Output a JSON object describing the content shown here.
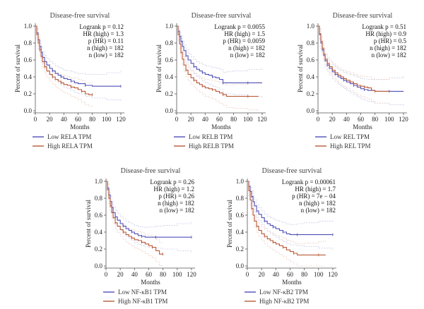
{
  "figure": {
    "background": "#ffffff",
    "colors": {
      "low": "#5050b8",
      "high": "#b85a38",
      "low_ci": "#b8b8e0",
      "high_ci": "#e6c0b0",
      "axis": "#555555"
    }
  },
  "chart_data": [
    {
      "type": "line",
      "title": "Disease-free survival",
      "xlabel": "Months",
      "ylabel": "Percent of survival",
      "xlim": [
        0,
        125
      ],
      "ylim": [
        0,
        1.0
      ],
      "xticks": [
        "0",
        "20",
        "40",
        "60",
        "80",
        "100",
        "120"
      ],
      "yticks": [
        "0.0",
        "0.2",
        "0.4",
        "0.6",
        "0.8",
        "1.0"
      ],
      "stats": [
        "Logrank p = 0.12",
        "HR (high) = 1.3",
        "p (HR) = 0.11",
        "n (high) = 182",
        "n (low) = 182"
      ],
      "legend": [
        "Low RELA TPM",
        "High RELA TPM"
      ],
      "series": [
        {
          "name": "Low RELA TPM",
          "x": [
            0,
            2,
            4,
            6,
            8,
            10,
            13,
            16,
            20,
            24,
            28,
            32,
            36,
            40,
            45,
            50,
            55,
            60,
            70,
            80,
            100,
            120
          ],
          "y": [
            1.0,
            0.92,
            0.84,
            0.76,
            0.69,
            0.63,
            0.58,
            0.54,
            0.5,
            0.47,
            0.44,
            0.42,
            0.4,
            0.38,
            0.37,
            0.35,
            0.33,
            0.32,
            0.3,
            0.29,
            0.29,
            0.29
          ]
        },
        {
          "name": "High RELA TPM",
          "x": [
            0,
            2,
            4,
            6,
            8,
            10,
            13,
            16,
            20,
            24,
            28,
            32,
            36,
            40,
            45,
            50,
            55,
            60,
            65,
            70,
            75,
            80
          ],
          "y": [
            1.0,
            0.9,
            0.8,
            0.72,
            0.64,
            0.58,
            0.52,
            0.47,
            0.43,
            0.4,
            0.37,
            0.35,
            0.33,
            0.31,
            0.3,
            0.28,
            0.27,
            0.25,
            0.23,
            0.2,
            0.19,
            0.19
          ]
        }
      ]
    },
    {
      "type": "line",
      "title": "Disease-free survival",
      "xlabel": "Months",
      "ylabel": "Percent of survival",
      "xlim": [
        0,
        125
      ],
      "ylim": [
        0,
        1.0
      ],
      "xticks": [
        "0",
        "20",
        "40",
        "60",
        "80",
        "100",
        "120"
      ],
      "yticks": [
        "0.0",
        "0.2",
        "0.4",
        "0.6",
        "0.8",
        "1.0"
      ],
      "stats": [
        "Logrank p = 0.0055",
        "HR (high) = 1.5",
        "p (HR) = 0.0059",
        "n (high) = 182",
        "n (low) = 182"
      ],
      "legend": [
        "Low RELB TPM",
        "High RELB TPM"
      ],
      "series": [
        {
          "name": "Low RELB TPM",
          "x": [
            0,
            2,
            4,
            6,
            8,
            10,
            13,
            16,
            20,
            24,
            28,
            32,
            36,
            40,
            45,
            50,
            55,
            60,
            65,
            70,
            80,
            100,
            120
          ],
          "y": [
            1.0,
            0.94,
            0.88,
            0.82,
            0.76,
            0.71,
            0.65,
            0.6,
            0.56,
            0.52,
            0.49,
            0.47,
            0.45,
            0.43,
            0.42,
            0.4,
            0.39,
            0.37,
            0.33,
            0.33,
            0.33,
            0.33,
            0.33
          ]
        },
        {
          "name": "High RELB TPM",
          "x": [
            0,
            2,
            4,
            6,
            8,
            10,
            13,
            16,
            20,
            24,
            28,
            32,
            36,
            40,
            45,
            50,
            55,
            60,
            65,
            70,
            80,
            100,
            115
          ],
          "y": [
            1.0,
            0.9,
            0.79,
            0.69,
            0.61,
            0.54,
            0.48,
            0.43,
            0.39,
            0.36,
            0.33,
            0.31,
            0.29,
            0.27,
            0.26,
            0.25,
            0.23,
            0.21,
            0.19,
            0.17,
            0.17,
            0.17,
            0.17
          ]
        }
      ]
    },
    {
      "type": "line",
      "title": "Disease-free survival",
      "xlabel": "Months",
      "ylabel": "Percent of survival",
      "xlim": [
        0,
        125
      ],
      "ylim": [
        0,
        1.0
      ],
      "xticks": [
        "0",
        "20",
        "40",
        "60",
        "80",
        "100",
        "120"
      ],
      "yticks": [
        "0.0",
        "0.2",
        "0.4",
        "0.6",
        "0.8",
        "1.0"
      ],
      "stats": [
        "Logrank p = 0.51",
        "HR (high) = 0.9",
        "p (HR) = 0.5",
        "n (high) = 182",
        "n (low) = 182"
      ],
      "legend": [
        "Low REL TPM",
        "High REL TPM"
      ],
      "series": [
        {
          "name": "Low REL TPM",
          "x": [
            0,
            2,
            4,
            6,
            8,
            10,
            13,
            16,
            20,
            24,
            28,
            32,
            36,
            40,
            45,
            50,
            55,
            60,
            65,
            70,
            80,
            100,
            120
          ],
          "y": [
            1.0,
            0.9,
            0.8,
            0.72,
            0.65,
            0.59,
            0.54,
            0.5,
            0.46,
            0.43,
            0.4,
            0.38,
            0.36,
            0.34,
            0.32,
            0.3,
            0.28,
            0.26,
            0.25,
            0.24,
            0.23,
            0.23,
            0.23
          ]
        },
        {
          "name": "High REL TPM",
          "x": [
            0,
            2,
            4,
            6,
            8,
            10,
            13,
            16,
            20,
            24,
            28,
            32,
            36,
            40,
            45,
            50,
            55,
            60,
            65,
            70,
            75,
            80,
            100
          ],
          "y": [
            1.0,
            0.91,
            0.82,
            0.74,
            0.67,
            0.61,
            0.56,
            0.52,
            0.48,
            0.45,
            0.42,
            0.4,
            0.38,
            0.36,
            0.34,
            0.32,
            0.3,
            0.29,
            0.28,
            0.27,
            0.24,
            0.23,
            0.23
          ]
        }
      ]
    },
    {
      "type": "line",
      "title": "Disease-free survival",
      "xlabel": "Months",
      "ylabel": "Percent of survival",
      "xlim": [
        0,
        125
      ],
      "ylim": [
        0,
        1.0
      ],
      "xticks": [
        "0",
        "20",
        "40",
        "60",
        "80",
        "100",
        "120"
      ],
      "yticks": [
        "0.0",
        "0.2",
        "0.4",
        "0.6",
        "0.8",
        "1.0"
      ],
      "stats": [
        "Logrank p = 0.26",
        "HR (high) = 1.2",
        "p (HR) = 0.26",
        "n (high) = 182",
        "n (low) = 182"
      ],
      "legend": [
        "Low NF-κB1 TPM",
        "High NF-κB1 TPM"
      ],
      "series": [
        {
          "name": "Low NF-κB1 TPM",
          "x": [
            0,
            2,
            4,
            6,
            8,
            10,
            13,
            16,
            20,
            24,
            28,
            32,
            36,
            40,
            45,
            50,
            55,
            60,
            70,
            80,
            100,
            120
          ],
          "y": [
            1.0,
            0.92,
            0.84,
            0.76,
            0.69,
            0.63,
            0.58,
            0.54,
            0.5,
            0.47,
            0.44,
            0.42,
            0.4,
            0.38,
            0.36,
            0.35,
            0.34,
            0.34,
            0.34,
            0.34,
            0.34,
            0.34
          ]
        },
        {
          "name": "High NF-κB1 TPM",
          "x": [
            0,
            2,
            4,
            6,
            8,
            10,
            13,
            16,
            20,
            24,
            28,
            32,
            36,
            40,
            45,
            50,
            55,
            60,
            65,
            70,
            75,
            80
          ],
          "y": [
            1.0,
            0.9,
            0.8,
            0.71,
            0.63,
            0.57,
            0.51,
            0.47,
            0.43,
            0.4,
            0.37,
            0.35,
            0.33,
            0.31,
            0.3,
            0.28,
            0.26,
            0.24,
            0.22,
            0.18,
            0.14,
            0.14
          ]
        }
      ]
    },
    {
      "type": "line",
      "title": "Disease-free survival",
      "xlabel": "Months",
      "ylabel": "Percent of survival",
      "xlim": [
        0,
        125
      ],
      "ylim": [
        0,
        1.0
      ],
      "xticks": [
        "0",
        "20",
        "40",
        "60",
        "80",
        "100",
        "120"
      ],
      "yticks": [
        "0.0",
        "0.2",
        "0.4",
        "0.6",
        "0.8",
        "1.0"
      ],
      "stats": [
        "Logrank p = 0.00061",
        "HR (high) = 1.7",
        "p (HR) = 7e − 04",
        "n (high) = 182",
        "n (low) = 182"
      ],
      "legend": [
        "Low NF-κB2 TPM",
        "High NF-κB2 TPM"
      ],
      "series": [
        {
          "name": "Low NF-κB2 TPM",
          "x": [
            0,
            2,
            4,
            6,
            8,
            10,
            13,
            16,
            20,
            24,
            28,
            32,
            36,
            40,
            45,
            50,
            55,
            60,
            70,
            80,
            100,
            120
          ],
          "y": [
            1.0,
            0.94,
            0.88,
            0.82,
            0.76,
            0.71,
            0.65,
            0.61,
            0.57,
            0.53,
            0.5,
            0.48,
            0.46,
            0.44,
            0.42,
            0.4,
            0.38,
            0.37,
            0.37,
            0.37,
            0.37,
            0.37
          ]
        },
        {
          "name": "High NF-κB2 TPM",
          "x": [
            0,
            2,
            4,
            6,
            8,
            10,
            13,
            16,
            20,
            24,
            28,
            32,
            36,
            40,
            45,
            50,
            55,
            60,
            65,
            70,
            80,
            100,
            110
          ],
          "y": [
            1.0,
            0.89,
            0.78,
            0.68,
            0.6,
            0.53,
            0.47,
            0.42,
            0.38,
            0.35,
            0.32,
            0.3,
            0.28,
            0.26,
            0.24,
            0.22,
            0.19,
            0.17,
            0.15,
            0.13,
            0.13,
            0.13,
            0.13
          ]
        }
      ]
    }
  ]
}
